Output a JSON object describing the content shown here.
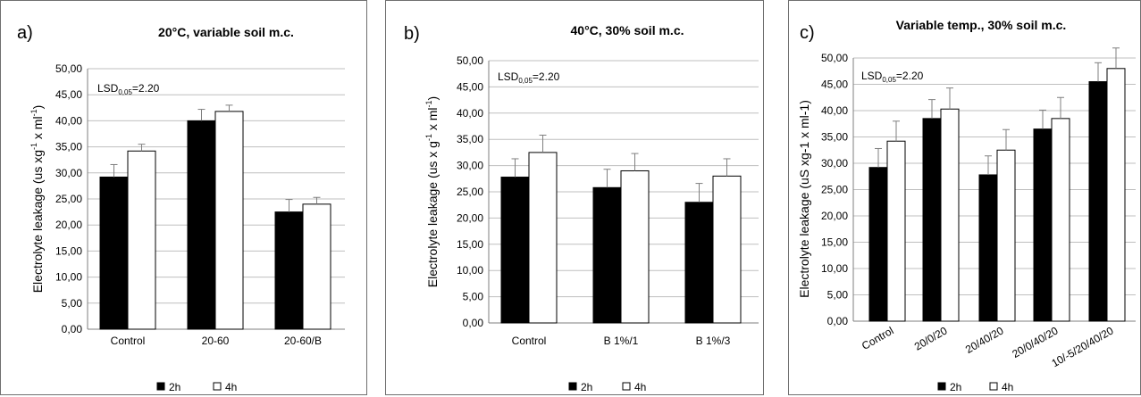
{
  "chart_data": [
    {
      "type": "bar",
      "panel_label": "a)",
      "title": "20°C, variable soil m.c.",
      "ylabel": "Electrolyte leakage (us xg-1 x ml-1)",
      "ylabel_parts": [
        "Electrolyte  leakage  (us xg",
        "-1",
        " x ml",
        "-1",
        ")"
      ],
      "ylim": [
        0,
        50
      ],
      "ytick_step": 5,
      "ytick_labels": [
        "0,00",
        "5,00",
        "10,00",
        "15,00",
        "20,00",
        "25,00",
        "30,00",
        "35,00",
        "40,00",
        "45,00",
        "50,00"
      ],
      "categories": [
        "Control",
        "20-60",
        "20-60/B"
      ],
      "series": [
        {
          "name": "2h",
          "values": [
            29.2,
            40.0,
            22.5
          ],
          "errors": [
            2.4,
            2.2,
            2.4
          ]
        },
        {
          "name": "4h",
          "values": [
            34.2,
            41.8,
            24.0
          ],
          "errors": [
            1.3,
            1.2,
            1.3
          ]
        }
      ],
      "lsd_label": "LSD",
      "lsd_sub": "0,05",
      "lsd_value": "=2.20"
    },
    {
      "type": "bar",
      "panel_label": "b)",
      "title": "40°C, 30% soil m.c.",
      "ylabel": "Electrolyte leakage (us x g-1 x ml-1)",
      "ylabel_parts": [
        "Electrolyte leakage  (us x g",
        "-1",
        " x ml",
        "-1",
        ")"
      ],
      "ylim": [
        0,
        50
      ],
      "ytick_step": 5,
      "ytick_labels": [
        "0,00",
        "5,00",
        "10,00",
        "15,00",
        "20,00",
        "25,00",
        "30,00",
        "35,00",
        "40,00",
        "45,00",
        "50,00"
      ],
      "categories": [
        "Control",
        "B 1%/1",
        "B 1%/3"
      ],
      "series": [
        {
          "name": "2h",
          "values": [
            27.8,
            25.8,
            23.0
          ],
          "errors": [
            3.5,
            3.5,
            3.6
          ]
        },
        {
          "name": "4h",
          "values": [
            32.5,
            29.0,
            28.0
          ],
          "errors": [
            3.3,
            3.3,
            3.3
          ]
        }
      ],
      "lsd_label": "LSD",
      "lsd_sub": "0,05",
      "lsd_value": "=2.20"
    },
    {
      "type": "bar",
      "panel_label": "c)",
      "title": "Variable temp., 30% soil    m.c.",
      "ylabel": "Electrolyte  leakage  (uS xg-1 x ml-1)",
      "ylabel_parts": [
        "Electrolyte  leakage  (uS xg-1 x ml-1)"
      ],
      "ylim": [
        0,
        50
      ],
      "ytick_step": 5,
      "ytick_labels": [
        "0,00",
        "5,00",
        "10,00",
        "15,00",
        "20,00",
        "25,00",
        "30,00",
        "35,00",
        "40,00",
        "45,00",
        "50,00"
      ],
      "categories": [
        "Control",
        "20/0/20",
        "20/40/20",
        "20/0/40/20",
        "10/-5/20/40/20"
      ],
      "series": [
        {
          "name": "2h",
          "values": [
            29.2,
            38.5,
            27.8,
            36.5,
            45.5
          ],
          "errors": [
            3.6,
            3.6,
            3.6,
            3.6,
            3.6
          ]
        },
        {
          "name": "4h",
          "values": [
            34.2,
            40.3,
            32.5,
            38.5,
            48.0
          ],
          "errors": [
            3.8,
            4.0,
            3.9,
            4.0,
            3.9
          ]
        }
      ],
      "lsd_label": "LSD",
      "lsd_sub": "0,05",
      "lsd_value": "=2.20"
    }
  ],
  "legend": {
    "items": [
      "2h",
      "4h"
    ]
  },
  "colors": {
    "series_2h": "#000000",
    "series_4h": "#ffffff",
    "grid": "#bfbfbf",
    "axis": "#7f7f7f",
    "border": "#6f6f6f"
  }
}
